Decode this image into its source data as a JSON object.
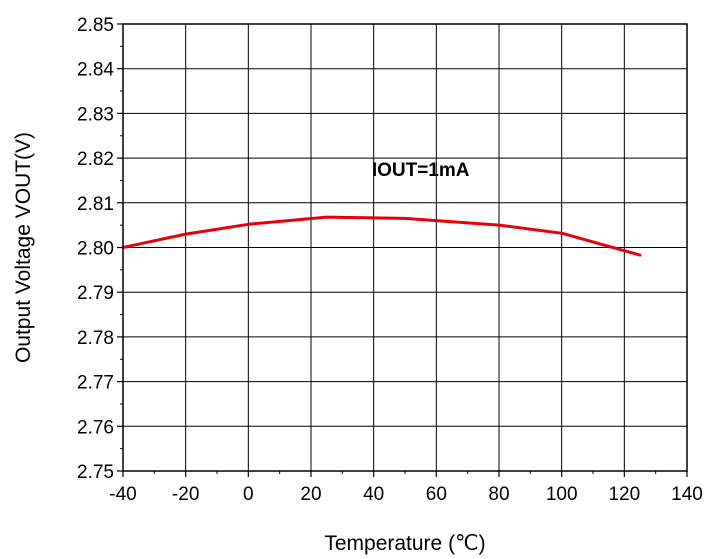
{
  "chart_data": {
    "type": "line",
    "xlabel": "Temperature (℃)",
    "ylabel": "Output Voltage VOUT(V)",
    "xlim": [
      -40,
      140
    ],
    "ylim": [
      2.75,
      2.85
    ],
    "x_ticks": [
      "-40",
      "-20",
      "0",
      "20",
      "40",
      "60",
      "80",
      "100",
      "120",
      "140"
    ],
    "y_ticks": [
      "2.75",
      "2.76",
      "2.77",
      "2.78",
      "2.79",
      "2.80",
      "2.81",
      "2.82",
      "2.83",
      "2.84",
      "2.85"
    ],
    "grid": true,
    "annotations": [
      {
        "text": "IOUT=1mA",
        "x": 55,
        "y": 2.816
      }
    ],
    "series": [
      {
        "color": "#e8000b",
        "x": [
          -40,
          -20,
          0,
          25,
          50,
          80,
          100,
          125
        ],
        "y": [
          2.8,
          2.803,
          2.8052,
          2.8068,
          2.8065,
          2.805,
          2.8032,
          2.7983
        ]
      }
    ]
  }
}
